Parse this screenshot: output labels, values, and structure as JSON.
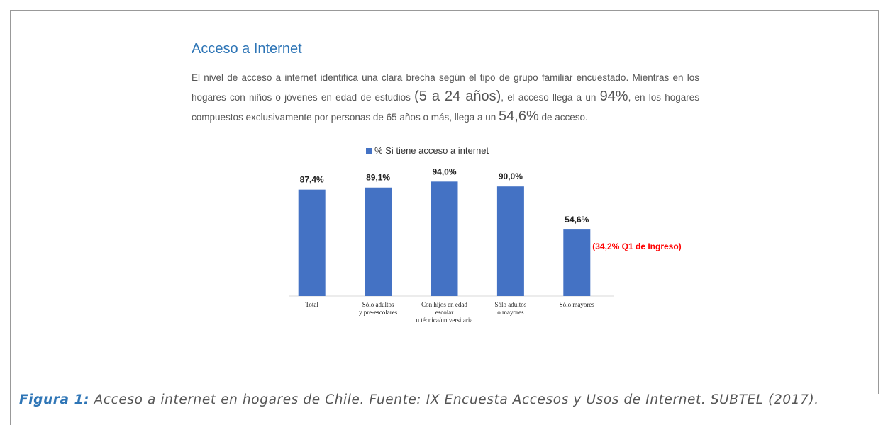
{
  "heading": "Acceso a Internet",
  "paragraph": {
    "parts": [
      "El nivel de acceso a internet identifica una clara brecha según el tipo de grupo familiar encuestado. Mientras en los hogares con niños o jóvenes en edad de estudios ",
      "(5 a 24 años)",
      ", el acceso llega a un ",
      "94%",
      ", en los hogares compuestos exclusivamente por personas de 65 años o más, llega a un ",
      "54,6%",
      " de acceso."
    ]
  },
  "chart_data": {
    "type": "bar",
    "categories": [
      "Total",
      "Sólo adultos\ny pre-escolares",
      "Con hijos en edad\nescolar\nu técnica/universitaria",
      "Sólo adultos\no mayores",
      "Sólo mayores"
    ],
    "series": [
      {
        "name": "% Si tiene acceso a internet",
        "color": "#4472c4",
        "values": [
          87.4,
          89.1,
          94.0,
          90.0,
          54.6
        ],
        "value_labels": [
          "87,4%",
          "89,1%",
          "94,0%",
          "90,0%",
          "54,6%"
        ]
      }
    ],
    "ylim": [
      0,
      100
    ],
    "annotations": [
      {
        "text": "(34,2% Q1 de Ingreso)",
        "category": 4,
        "color": "#ff0000"
      }
    ]
  },
  "caption": {
    "label": "Figura 1:",
    "text": " Acceso a internet en hogares de Chile. Fuente: IX Encuesta Accesos y Usos de Internet. SUBTEL (2017)."
  }
}
